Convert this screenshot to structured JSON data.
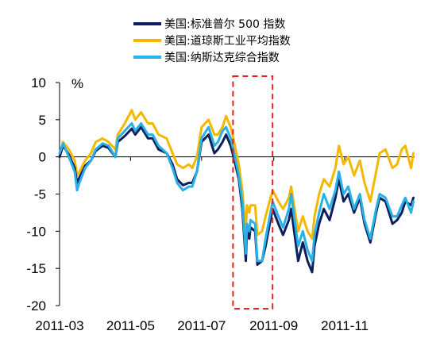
{
  "chart_data": {
    "type": "line",
    "title": "",
    "xlabel": "",
    "ylabel": "%",
    "ylim": [
      -20,
      10
    ],
    "yticks": [
      "10",
      "5",
      "0",
      "-5",
      "-10",
      "-15",
      "-20"
    ],
    "xticks": [
      "2011-03",
      "2011-05",
      "2011-07",
      "2011-09",
      "2011-11"
    ],
    "x_range": [
      "2011-03-01",
      "2011-12-31"
    ],
    "grid": false,
    "legend_position": "top-center",
    "highlight": {
      "x_start": "2011-07-28",
      "x_end": "2011-08-31",
      "style": "red dashed box"
    },
    "series": [
      {
        "name": "美国:标准普尔 500 指数",
        "color": "#0d1f5c",
        "points": [
          [
            "2011-03-01",
            0
          ],
          [
            "2011-03-04",
            1.5
          ],
          [
            "2011-03-09",
            0.3
          ],
          [
            "2011-03-14",
            -1.5
          ],
          [
            "2011-03-16",
            -3.5
          ],
          [
            "2011-03-18",
            -2.8
          ],
          [
            "2011-03-23",
            -1.2
          ],
          [
            "2011-03-28",
            -0.5
          ],
          [
            "2011-04-01",
            0.8
          ],
          [
            "2011-04-07",
            1.5
          ],
          [
            "2011-04-12",
            1.2
          ],
          [
            "2011-04-18",
            0
          ],
          [
            "2011-04-20",
            2
          ],
          [
            "2011-04-26",
            2.8
          ],
          [
            "2011-05-02",
            3.8
          ],
          [
            "2011-05-05",
            3
          ],
          [
            "2011-05-10",
            4
          ],
          [
            "2011-05-16",
            2.5
          ],
          [
            "2011-05-20",
            2.5
          ],
          [
            "2011-05-25",
            1
          ],
          [
            "2011-06-01",
            0.5
          ],
          [
            "2011-06-06",
            -1
          ],
          [
            "2011-06-10",
            -3
          ],
          [
            "2011-06-15",
            -3.8
          ],
          [
            "2011-06-20",
            -3.5
          ],
          [
            "2011-06-23",
            -3.5
          ],
          [
            "2011-06-27",
            -2
          ],
          [
            "2011-07-01",
            2
          ],
          [
            "2011-07-07",
            3
          ],
          [
            "2011-07-12",
            0.5
          ],
          [
            "2011-07-15",
            1
          ],
          [
            "2011-07-19",
            2
          ],
          [
            "2011-07-22",
            3
          ],
          [
            "2011-07-26",
            1.5
          ],
          [
            "2011-07-29",
            -0.3
          ],
          [
            "2011-08-02",
            -3
          ],
          [
            "2011-08-05",
            -7
          ],
          [
            "2011-08-08",
            -14
          ],
          [
            "2011-08-09",
            -10
          ],
          [
            "2011-08-11",
            -11
          ],
          [
            "2011-08-12",
            -9.5
          ],
          [
            "2011-08-16",
            -10
          ],
          [
            "2011-08-18",
            -14.5
          ],
          [
            "2011-08-22",
            -14
          ],
          [
            "2011-08-25",
            -12
          ],
          [
            "2011-08-31",
            -7
          ],
          [
            "2011-09-05",
            -9
          ],
          [
            "2011-09-09",
            -10.5
          ],
          [
            "2011-09-14",
            -8.5
          ],
          [
            "2011-09-16",
            -7
          ],
          [
            "2011-09-22",
            -14
          ],
          [
            "2011-09-26",
            -11.5
          ],
          [
            "2011-09-30",
            -14
          ],
          [
            "2011-10-04",
            -15.5
          ],
          [
            "2011-10-06",
            -12
          ],
          [
            "2011-10-10",
            -9
          ],
          [
            "2011-10-14",
            -7
          ],
          [
            "2011-10-19",
            -8.5
          ],
          [
            "2011-10-24",
            -5.5
          ],
          [
            "2011-10-27",
            -3
          ],
          [
            "2011-10-31",
            -6
          ],
          [
            "2011-11-04",
            -5
          ],
          [
            "2011-11-09",
            -7.5
          ],
          [
            "2011-11-14",
            -5.5
          ],
          [
            "2011-11-18",
            -9
          ],
          [
            "2011-11-23",
            -11.5
          ],
          [
            "2011-11-28",
            -7.5
          ],
          [
            "2011-12-01",
            -5.5
          ],
          [
            "2011-12-06",
            -6
          ],
          [
            "2011-12-12",
            -9
          ],
          [
            "2011-12-16",
            -8.5
          ],
          [
            "2011-12-20",
            -7.5
          ],
          [
            "2011-12-23",
            -6
          ],
          [
            "2011-12-28",
            -6.5
          ],
          [
            "2011-12-30",
            -5.5
          ]
        ]
      },
      {
        "name": "美国:道琼斯工业平均指数",
        "color": "#f5b800",
        "points": [
          [
            "2011-03-01",
            0
          ],
          [
            "2011-03-04",
            2
          ],
          [
            "2011-03-09",
            1
          ],
          [
            "2011-03-14",
            -0.5
          ],
          [
            "2011-03-16",
            -2.5
          ],
          [
            "2011-03-18",
            -2
          ],
          [
            "2011-03-23",
            -0.5
          ],
          [
            "2011-03-28",
            0.5
          ],
          [
            "2011-04-01",
            2
          ],
          [
            "2011-04-07",
            2.5
          ],
          [
            "2011-04-12",
            2
          ],
          [
            "2011-04-18",
            1
          ],
          [
            "2011-04-20",
            3
          ],
          [
            "2011-04-26",
            4.5
          ],
          [
            "2011-05-02",
            6.3
          ],
          [
            "2011-05-05",
            5
          ],
          [
            "2011-05-10",
            6
          ],
          [
            "2011-05-16",
            4.5
          ],
          [
            "2011-05-20",
            4.5
          ],
          [
            "2011-05-25",
            3
          ],
          [
            "2011-06-01",
            2.5
          ],
          [
            "2011-06-06",
            0.5
          ],
          [
            "2011-06-10",
            -1
          ],
          [
            "2011-06-15",
            -1.5
          ],
          [
            "2011-06-20",
            -1
          ],
          [
            "2011-06-23",
            -1.5
          ],
          [
            "2011-06-27",
            0
          ],
          [
            "2011-07-01",
            4
          ],
          [
            "2011-07-07",
            5
          ],
          [
            "2011-07-12",
            3
          ],
          [
            "2011-07-15",
            3
          ],
          [
            "2011-07-19",
            4
          ],
          [
            "2011-07-22",
            5.5
          ],
          [
            "2011-07-26",
            4
          ],
          [
            "2011-07-29",
            2
          ],
          [
            "2011-08-02",
            -1
          ],
          [
            "2011-08-05",
            -4.5
          ],
          [
            "2011-08-08",
            -10
          ],
          [
            "2011-08-09",
            -6.5
          ],
          [
            "2011-08-11",
            -7.5
          ],
          [
            "2011-08-12",
            -6.5
          ],
          [
            "2011-08-16",
            -6.5
          ],
          [
            "2011-08-18",
            -10.5
          ],
          [
            "2011-08-22",
            -10
          ],
          [
            "2011-08-25",
            -8
          ],
          [
            "2011-08-31",
            -4.5
          ],
          [
            "2011-09-05",
            -6
          ],
          [
            "2011-09-09",
            -7
          ],
          [
            "2011-09-14",
            -5.5
          ],
          [
            "2011-09-16",
            -4
          ],
          [
            "2011-09-22",
            -10
          ],
          [
            "2011-09-26",
            -8
          ],
          [
            "2011-09-30",
            -10
          ],
          [
            "2011-10-04",
            -11
          ],
          [
            "2011-10-06",
            -8
          ],
          [
            "2011-10-10",
            -5
          ],
          [
            "2011-10-14",
            -3
          ],
          [
            "2011-10-19",
            -4
          ],
          [
            "2011-10-24",
            -1.5
          ],
          [
            "2011-10-27",
            1.5
          ],
          [
            "2011-10-31",
            -1
          ],
          [
            "2011-11-04",
            0
          ],
          [
            "2011-11-09",
            -2.5
          ],
          [
            "2011-11-14",
            -0.5
          ],
          [
            "2011-11-18",
            -3.5
          ],
          [
            "2011-11-23",
            -6
          ],
          [
            "2011-11-28",
            -2
          ],
          [
            "2011-12-01",
            0.5
          ],
          [
            "2011-12-06",
            1
          ],
          [
            "2011-12-12",
            -1.5
          ],
          [
            "2011-12-16",
            -1
          ],
          [
            "2011-12-20",
            1
          ],
          [
            "2011-12-23",
            1.5
          ],
          [
            "2011-12-28",
            -1.5
          ],
          [
            "2011-12-30",
            0.5
          ]
        ]
      },
      {
        "name": "美国:纳斯达克综合指数",
        "color": "#27b1e6",
        "points": [
          [
            "2011-03-01",
            0.5
          ],
          [
            "2011-03-04",
            1.8
          ],
          [
            "2011-03-09",
            0
          ],
          [
            "2011-03-14",
            -2
          ],
          [
            "2011-03-16",
            -4.5
          ],
          [
            "2011-03-18",
            -3.5
          ],
          [
            "2011-03-23",
            -1.5
          ],
          [
            "2011-03-28",
            -0.5
          ],
          [
            "2011-04-01",
            1
          ],
          [
            "2011-04-07",
            1.8
          ],
          [
            "2011-04-12",
            1.5
          ],
          [
            "2011-04-18",
            0
          ],
          [
            "2011-04-20",
            2.5
          ],
          [
            "2011-04-26",
            3.5
          ],
          [
            "2011-05-02",
            4.5
          ],
          [
            "2011-05-05",
            3.5
          ],
          [
            "2011-05-10",
            4.5
          ],
          [
            "2011-05-16",
            3
          ],
          [
            "2011-05-20",
            3
          ],
          [
            "2011-05-25",
            1.5
          ],
          [
            "2011-06-01",
            0.5
          ],
          [
            "2011-06-06",
            -1.5
          ],
          [
            "2011-06-10",
            -3.5
          ],
          [
            "2011-06-15",
            -4.5
          ],
          [
            "2011-06-20",
            -4
          ],
          [
            "2011-06-23",
            -4
          ],
          [
            "2011-06-27",
            -2
          ],
          [
            "2011-07-01",
            2.5
          ],
          [
            "2011-07-07",
            4
          ],
          [
            "2011-07-12",
            1.5
          ],
          [
            "2011-07-15",
            2
          ],
          [
            "2011-07-19",
            3.5
          ],
          [
            "2011-07-22",
            4
          ],
          [
            "2011-07-26",
            2.5
          ],
          [
            "2011-07-29",
            0.5
          ],
          [
            "2011-08-02",
            -2.5
          ],
          [
            "2011-08-05",
            -6
          ],
          [
            "2011-08-08",
            -13
          ],
          [
            "2011-08-09",
            -9
          ],
          [
            "2011-08-11",
            -10
          ],
          [
            "2011-08-12",
            -8.5
          ],
          [
            "2011-08-16",
            -9
          ],
          [
            "2011-08-18",
            -14
          ],
          [
            "2011-08-22",
            -14
          ],
          [
            "2011-08-25",
            -11
          ],
          [
            "2011-08-31",
            -6
          ],
          [
            "2011-09-05",
            -8
          ],
          [
            "2011-09-09",
            -9.5
          ],
          [
            "2011-09-14",
            -7
          ],
          [
            "2011-09-16",
            -5
          ],
          [
            "2011-09-22",
            -12
          ],
          [
            "2011-09-26",
            -10
          ],
          [
            "2011-09-30",
            -12.5
          ],
          [
            "2011-10-04",
            -14
          ],
          [
            "2011-10-06",
            -10.5
          ],
          [
            "2011-10-10",
            -7.5
          ],
          [
            "2011-10-14",
            -5
          ],
          [
            "2011-10-19",
            -7
          ],
          [
            "2011-10-24",
            -4.5
          ],
          [
            "2011-10-27",
            -2
          ],
          [
            "2011-10-31",
            -5
          ],
          [
            "2011-11-04",
            -4
          ],
          [
            "2011-11-09",
            -7
          ],
          [
            "2011-11-14",
            -5
          ],
          [
            "2011-11-18",
            -8.5
          ],
          [
            "2011-11-23",
            -11
          ],
          [
            "2011-11-28",
            -7
          ],
          [
            "2011-12-01",
            -5
          ],
          [
            "2011-12-06",
            -5.5
          ],
          [
            "2011-12-12",
            -8
          ],
          [
            "2011-12-16",
            -8
          ],
          [
            "2011-12-20",
            -6.5
          ],
          [
            "2011-12-23",
            -5.5
          ],
          [
            "2011-12-28",
            -7.5
          ],
          [
            "2011-12-30",
            -6
          ]
        ]
      }
    ]
  }
}
